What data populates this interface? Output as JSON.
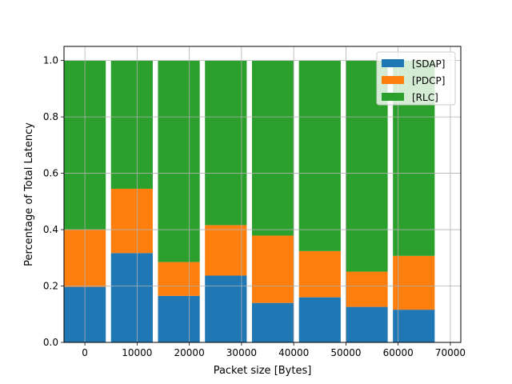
{
  "chart_data": {
    "type": "bar",
    "stacked": true,
    "x": [
      0,
      9000,
      18000,
      27000,
      36000,
      45000,
      54000,
      63000
    ],
    "bar_width": 8000,
    "series": [
      {
        "name": "[SDAP]",
        "color": "#1f77b4",
        "values": [
          0.197,
          0.317,
          0.165,
          0.237,
          0.14,
          0.16,
          0.126,
          0.116
        ]
      },
      {
        "name": "[PDCP]",
        "color": "#ff7f0e",
        "values": [
          0.203,
          0.228,
          0.12,
          0.179,
          0.239,
          0.164,
          0.125,
          0.191
        ]
      },
      {
        "name": "[RLC]",
        "color": "#2ca02c",
        "values": [
          0.6,
          0.455,
          0.715,
          0.584,
          0.621,
          0.676,
          0.749,
          0.693
        ]
      }
    ],
    "xlabel": "Packet size [Bytes]",
    "ylabel": "Percentage of Total Latency",
    "xlim": [
      -4000,
      72000
    ],
    "ylim": [
      0,
      1.05
    ],
    "xticks": [
      0,
      10000,
      20000,
      30000,
      40000,
      50000,
      60000,
      70000
    ],
    "xtick_labels": [
      "0",
      "10000",
      "20000",
      "30000",
      "40000",
      "50000",
      "60000",
      "70000"
    ],
    "yticks": [
      0.0,
      0.2,
      0.4,
      0.6,
      0.8,
      1.0
    ],
    "ytick_labels": [
      "0.0",
      "0.2",
      "0.4",
      "0.6",
      "0.8",
      "1.0"
    ],
    "grid": true,
    "legend_position": "top-right"
  }
}
